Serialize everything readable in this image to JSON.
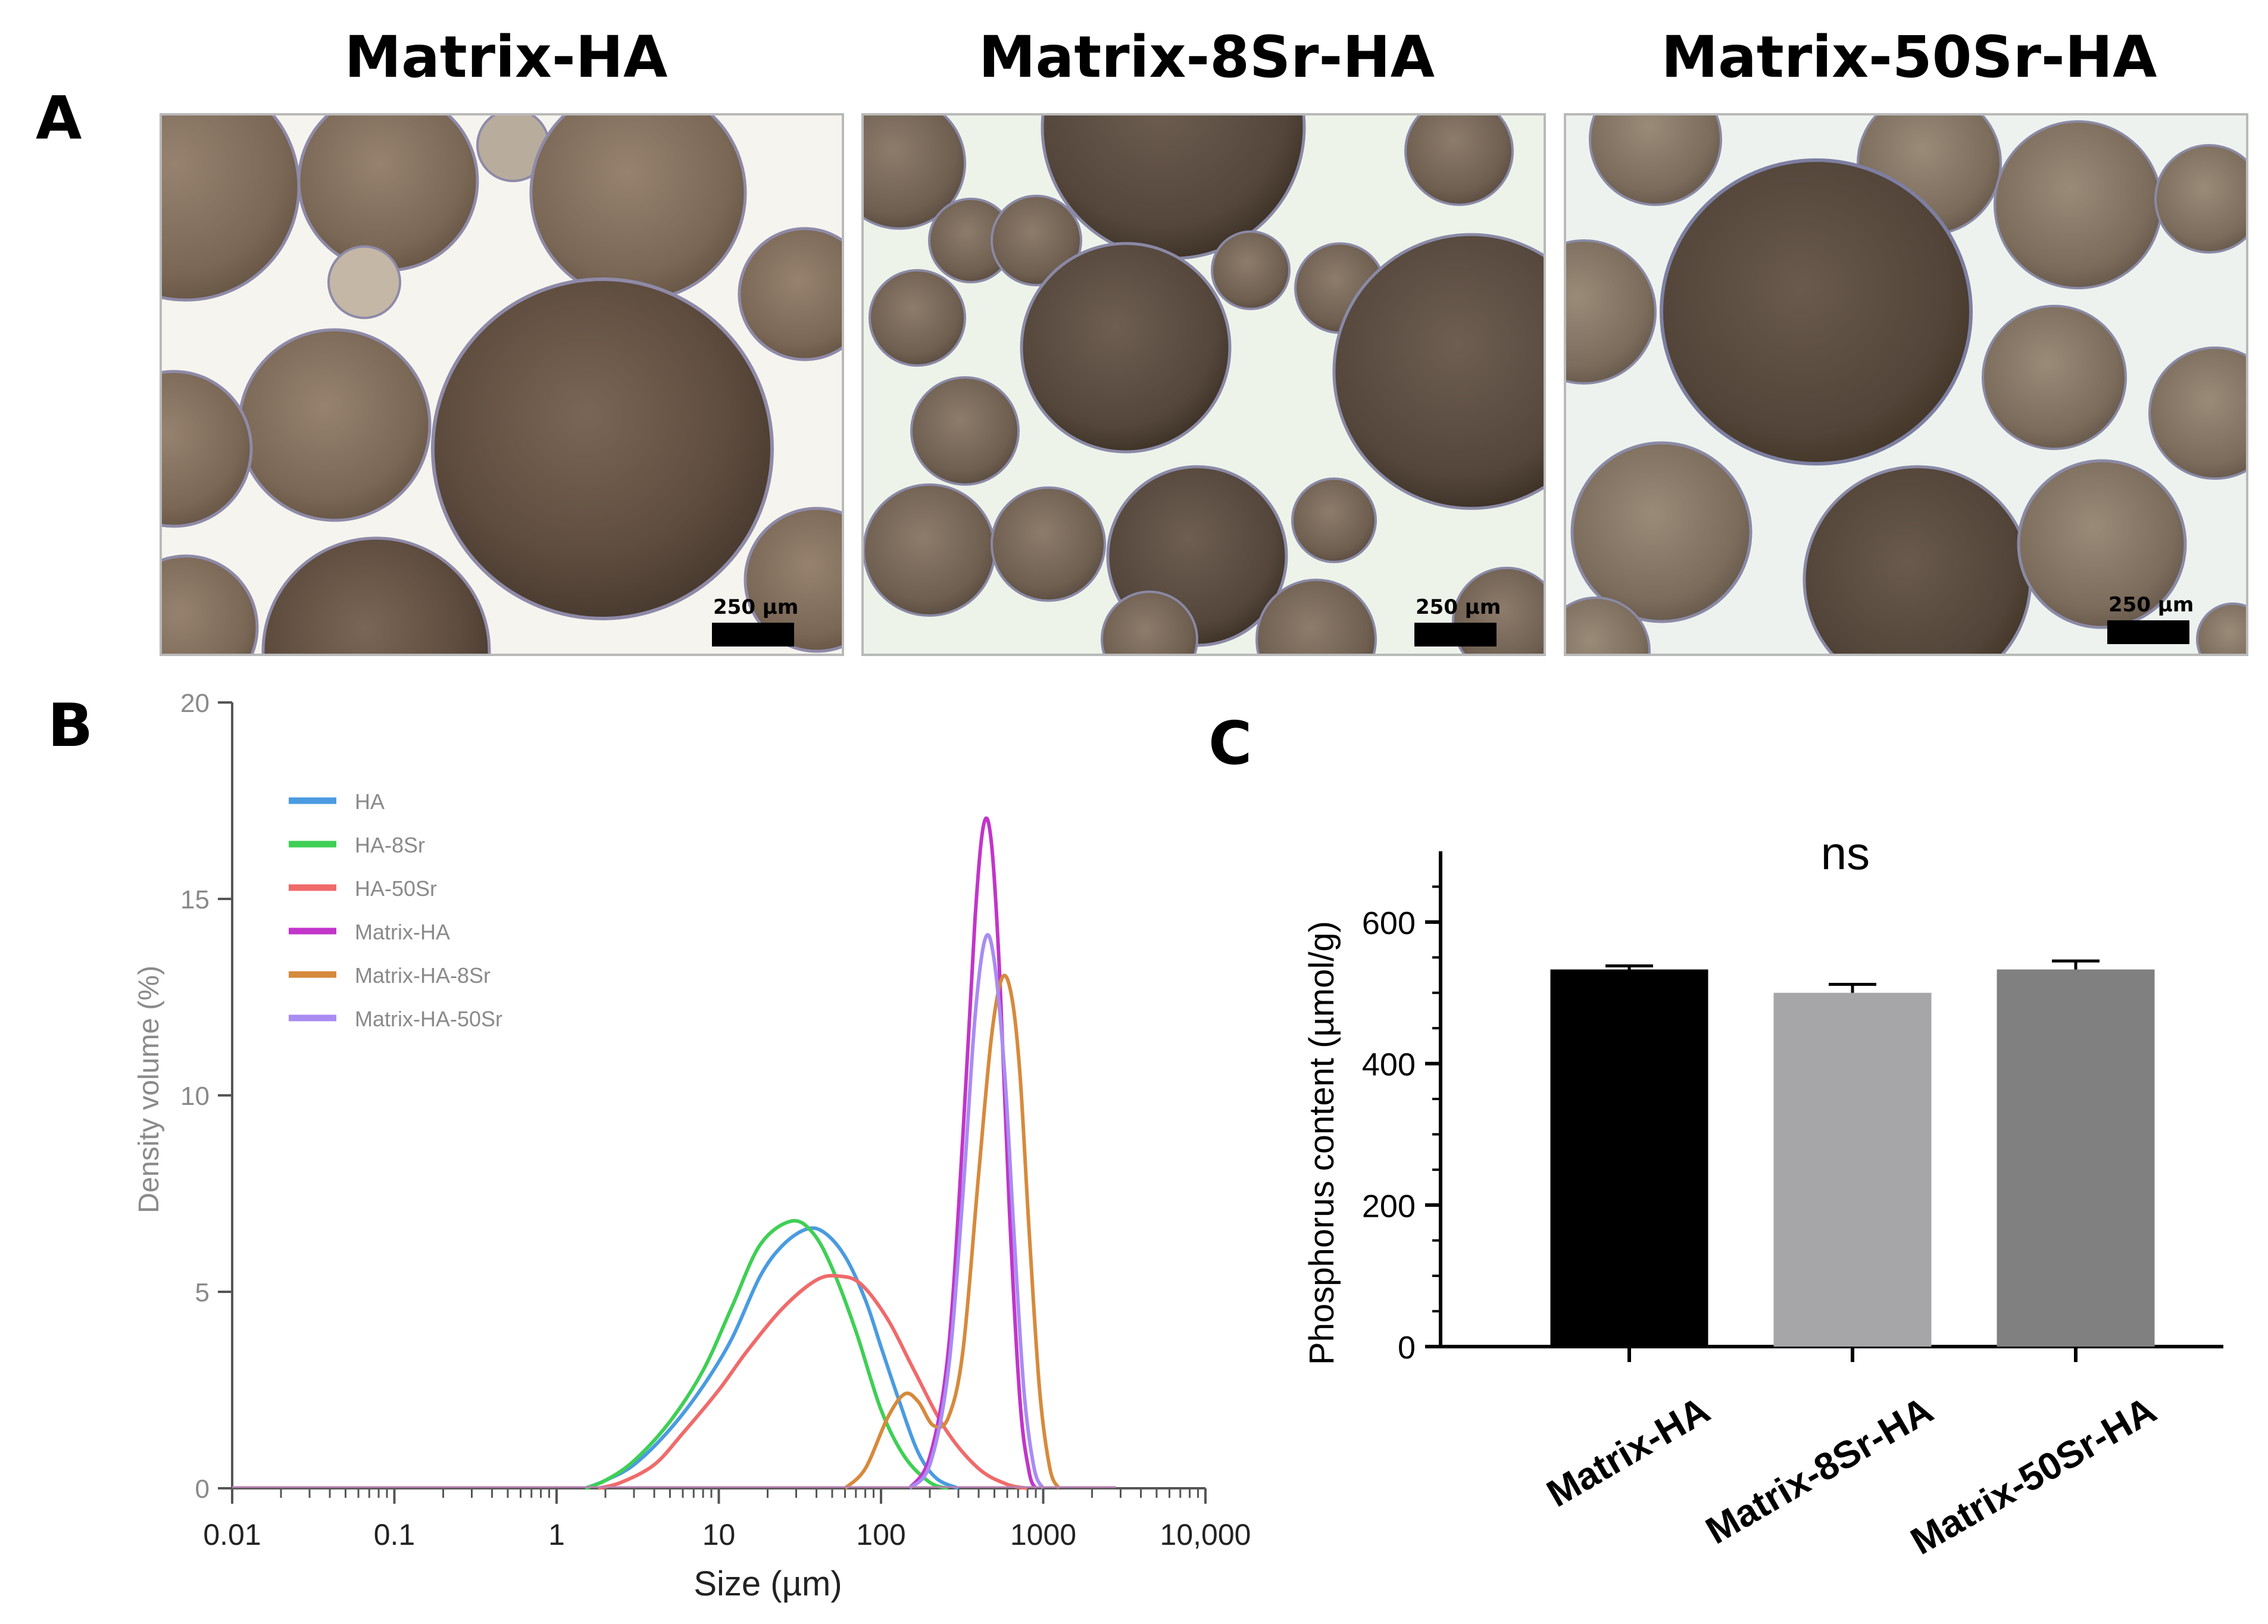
{
  "panels": {
    "a_letter": "A",
    "b_letter": "B",
    "c_letter": "C"
  },
  "micrographs": [
    {
      "title": "Matrix-HA",
      "scale_label": "250 µm",
      "background": "#f6f4ee"
    },
    {
      "title": "Matrix-8Sr-HA",
      "scale_label": "250 µm",
      "background": "#eef3ea"
    },
    {
      "title": "Matrix-50Sr-HA",
      "scale_label": "250 µm",
      "background": "#eef2ee"
    }
  ],
  "chart_data": [
    {
      "type": "line",
      "xlabel": "Size (µm)",
      "ylabel": "Density volume (%)",
      "xscale": "log",
      "xlim": [
        0.01,
        10000
      ],
      "ylim": [
        0,
        20
      ],
      "x_ticks": [
        "0.01",
        "0.1",
        "1",
        "10",
        "100",
        "1000",
        "10,000"
      ],
      "y_ticks": [
        "0",
        "5",
        "10",
        "15",
        "20"
      ],
      "legend_position": "top-left",
      "series": [
        {
          "name": "HA",
          "color": "#4a9be0",
          "points": [
            [
              1.5,
              0
            ],
            [
              2,
              0.2
            ],
            [
              3,
              0.6
            ],
            [
              5,
              1.5
            ],
            [
              8,
              2.6
            ],
            [
              12,
              3.8
            ],
            [
              18,
              5.4
            ],
            [
              25,
              6.2
            ],
            [
              35,
              6.6
            ],
            [
              45,
              6.5
            ],
            [
              60,
              5.9
            ],
            [
              80,
              4.8
            ],
            [
              100,
              3.6
            ],
            [
              130,
              2.2
            ],
            [
              170,
              0.9
            ],
            [
              220,
              0.25
            ],
            [
              300,
              0
            ]
          ]
        },
        {
          "name": "HA-8Sr",
          "color": "#3fcf55",
          "points": [
            [
              1.5,
              0
            ],
            [
              2,
              0.2
            ],
            [
              3,
              0.7
            ],
            [
              5,
              1.7
            ],
            [
              8,
              3.0
            ],
            [
              12,
              4.6
            ],
            [
              18,
              6.2
            ],
            [
              28,
              6.8
            ],
            [
              38,
              6.5
            ],
            [
              50,
              5.6
            ],
            [
              70,
              4.0
            ],
            [
              100,
              2.0
            ],
            [
              140,
              0.8
            ],
            [
              200,
              0.15
            ],
            [
              260,
              0
            ]
          ]
        },
        {
          "name": "HA-50Sr",
          "color": "#f06a6a",
          "points": [
            [
              1.8,
              0
            ],
            [
              2.5,
              0.15
            ],
            [
              4,
              0.6
            ],
            [
              6,
              1.4
            ],
            [
              10,
              2.5
            ],
            [
              15,
              3.5
            ],
            [
              25,
              4.6
            ],
            [
              40,
              5.3
            ],
            [
              55,
              5.4
            ],
            [
              75,
              5.2
            ],
            [
              110,
              4.3
            ],
            [
              160,
              3.0
            ],
            [
              250,
              1.5
            ],
            [
              400,
              0.5
            ],
            [
              600,
              0.1
            ],
            [
              800,
              0
            ]
          ]
        },
        {
          "name": "Matrix-HA",
          "color": "#c235c9",
          "points": [
            [
              150,
              0
            ],
            [
              200,
              0.8
            ],
            [
              260,
              3.5
            ],
            [
              320,
              9
            ],
            [
              380,
              14.5
            ],
            [
              430,
              16.9
            ],
            [
              480,
              16.4
            ],
            [
              540,
              13
            ],
            [
              620,
              7
            ],
            [
              720,
              2.2
            ],
            [
              820,
              0.4
            ],
            [
              900,
              0
            ]
          ]
        },
        {
          "name": "Matrix-HA-8Sr",
          "color": "#d68a3c",
          "points": [
            [
              60,
              0
            ],
            [
              80,
              0.5
            ],
            [
              110,
              1.8
            ],
            [
              140,
              2.4
            ],
            [
              170,
              2.2
            ],
            [
              210,
              1.6
            ],
            [
              260,
              1.8
            ],
            [
              320,
              3.5
            ],
            [
              400,
              8
            ],
            [
              480,
              11.5
            ],
            [
              560,
              13.0
            ],
            [
              640,
              12.5
            ],
            [
              720,
              10.5
            ],
            [
              820,
              6.5
            ],
            [
              950,
              2.5
            ],
            [
              1100,
              0.5
            ],
            [
              1250,
              0
            ]
          ]
        },
        {
          "name": "Matrix-HA-50Sr",
          "color": "#a98cf2",
          "points": [
            [
              150,
              0
            ],
            [
              200,
              0.6
            ],
            [
              260,
              3.0
            ],
            [
              320,
              7.5
            ],
            [
              380,
              12
            ],
            [
              440,
              14.0
            ],
            [
              500,
              13.4
            ],
            [
              580,
              10.5
            ],
            [
              660,
              6.5
            ],
            [
              760,
              2.5
            ],
            [
              880,
              0.5
            ],
            [
              1000,
              0
            ]
          ]
        }
      ]
    },
    {
      "type": "bar",
      "annotation": "ns",
      "ylabel": "Phosphorus content (µmol/g)",
      "ylim": [
        0,
        700
      ],
      "y_ticks": [
        "0",
        "200",
        "400",
        "600"
      ],
      "categories": [
        "Matrix-HA",
        "Matrix-8Sr-HA",
        "Matrix-50Sr-HA"
      ],
      "values": [
        533,
        500,
        533
      ],
      "errors": [
        5,
        12,
        12
      ],
      "colors": [
        "#000000",
        "#a6a6a8",
        "#808080"
      ]
    }
  ]
}
